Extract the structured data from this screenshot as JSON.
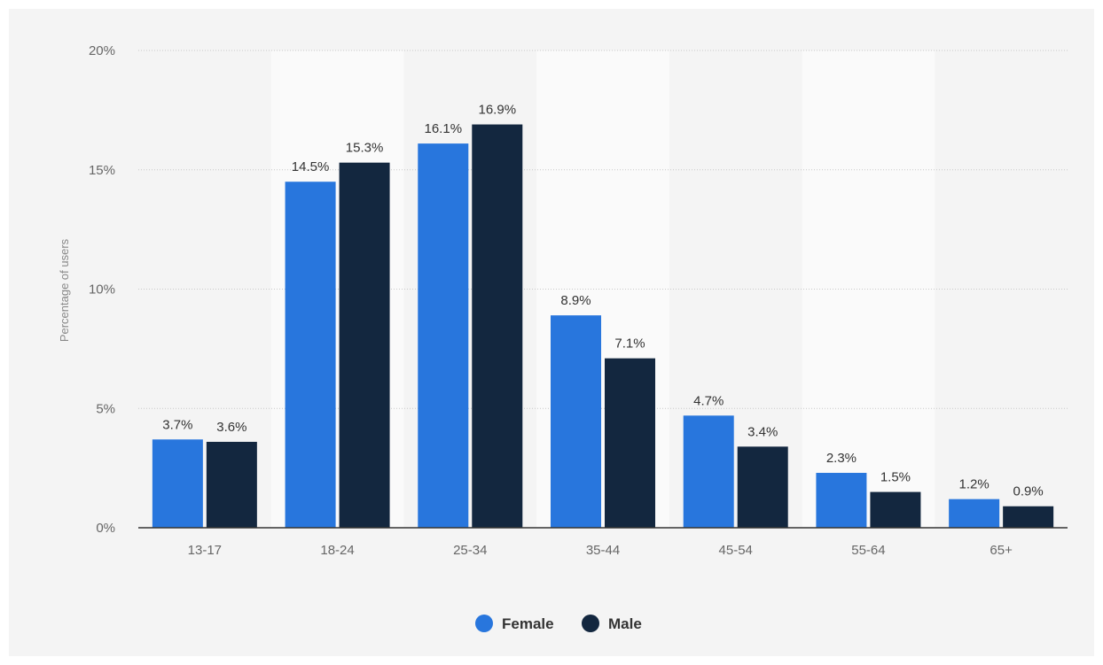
{
  "chart_data": {
    "type": "bar",
    "title": "",
    "xlabel": "",
    "ylabel": "Percentage of users",
    "ylim": [
      0,
      20
    ],
    "yticks": [
      "0%",
      "5%",
      "10%",
      "15%",
      "20%"
    ],
    "grid": true,
    "legend_position": "bottom-center",
    "categories": [
      "13-17",
      "18-24",
      "25-34",
      "35-44",
      "45-54",
      "55-64",
      "65+"
    ],
    "series": [
      {
        "name": "Female",
        "color": "#2876dd",
        "values": [
          3.7,
          14.5,
          16.1,
          8.9,
          4.7,
          2.3,
          1.2
        ],
        "labels": [
          "3.7%",
          "14.5%",
          "16.1%",
          "8.9%",
          "4.7%",
          "2.3%",
          "1.2%"
        ]
      },
      {
        "name": "Male",
        "color": "#13273f",
        "values": [
          3.6,
          15.3,
          16.9,
          7.1,
          3.4,
          1.5,
          0.9
        ],
        "labels": [
          "3.6%",
          "15.3%",
          "16.9%",
          "7.1%",
          "3.4%",
          "1.5%",
          "0.9%"
        ]
      }
    ]
  }
}
